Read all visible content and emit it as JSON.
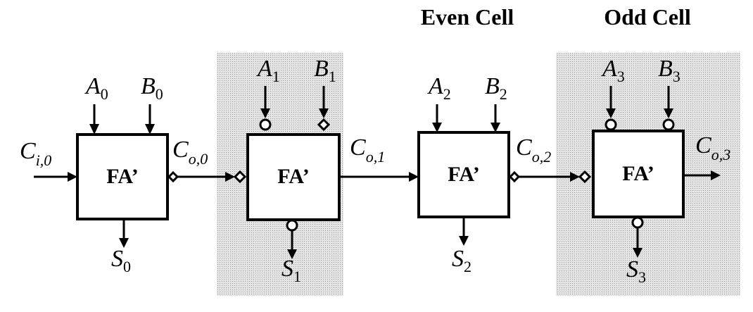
{
  "headings": {
    "even": "Even Cell",
    "odd": "Odd Cell"
  },
  "cell_label": "FA’",
  "cells": [
    {
      "a_base": "A",
      "a_sub": "0",
      "b_base": "B",
      "b_sub": "0",
      "s_base": "S",
      "s_sub": "0",
      "shaded": false
    },
    {
      "a_base": "A",
      "a_sub": "1",
      "b_base": "B",
      "b_sub": "1",
      "s_base": "S",
      "s_sub": "1",
      "shaded": true
    },
    {
      "a_base": "A",
      "a_sub": "2",
      "b_base": "B",
      "b_sub": "2",
      "s_base": "S",
      "s_sub": "2",
      "shaded": false
    },
    {
      "a_base": "A",
      "a_sub": "3",
      "b_base": "B",
      "b_sub": "3",
      "s_base": "S",
      "s_sub": "3",
      "shaded": true
    }
  ],
  "carries": [
    {
      "base": "C",
      "sub": "i,0"
    },
    {
      "base": "C",
      "sub": "o,0"
    },
    {
      "base": "C",
      "sub": "o,1"
    },
    {
      "base": "C",
      "sub": "o,2"
    },
    {
      "base": "C",
      "sub": "o,3"
    }
  ],
  "colors": {
    "shade": "#d8d8d8",
    "line": "#000000"
  }
}
